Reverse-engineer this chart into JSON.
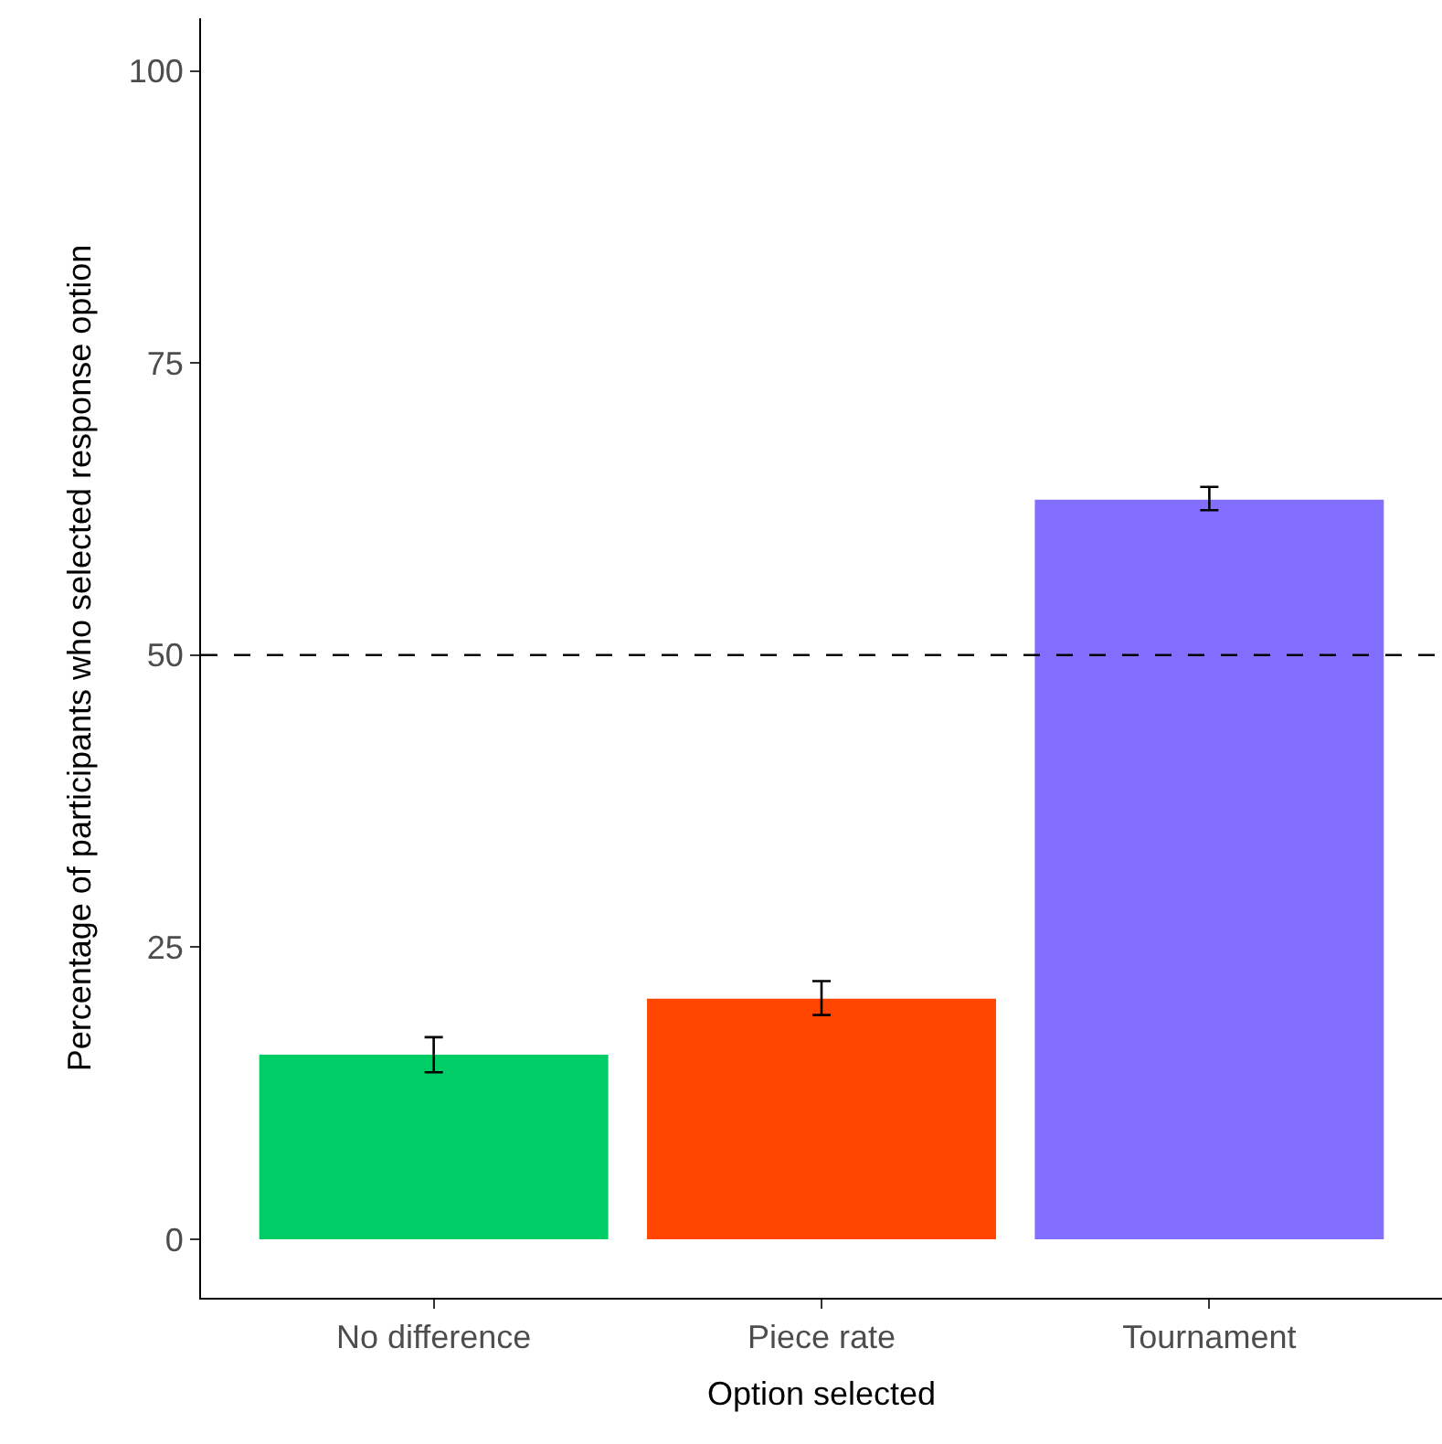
{
  "chart_data": {
    "type": "bar",
    "xlabel": "Option selected",
    "ylabel": "Percentage of participants who selected response option",
    "categories": [
      "No difference",
      "Piece rate",
      "Tournament"
    ],
    "values": [
      15.8,
      20.6,
      63.3
    ],
    "colors": [
      "#00cd66",
      "#ff4500",
      "#836fff"
    ],
    "errors": [
      [
        14.3,
        17.3
      ],
      [
        19.2,
        22.1
      ],
      [
        62.4,
        64.4
      ]
    ],
    "ylim": [
      -5,
      104.5
    ],
    "yticks": [
      0,
      25,
      50,
      75,
      100
    ],
    "ref_lines": [
      {
        "axis": "y",
        "value": 50,
        "line_style": "dashed",
        "color": "#000000"
      }
    ]
  }
}
